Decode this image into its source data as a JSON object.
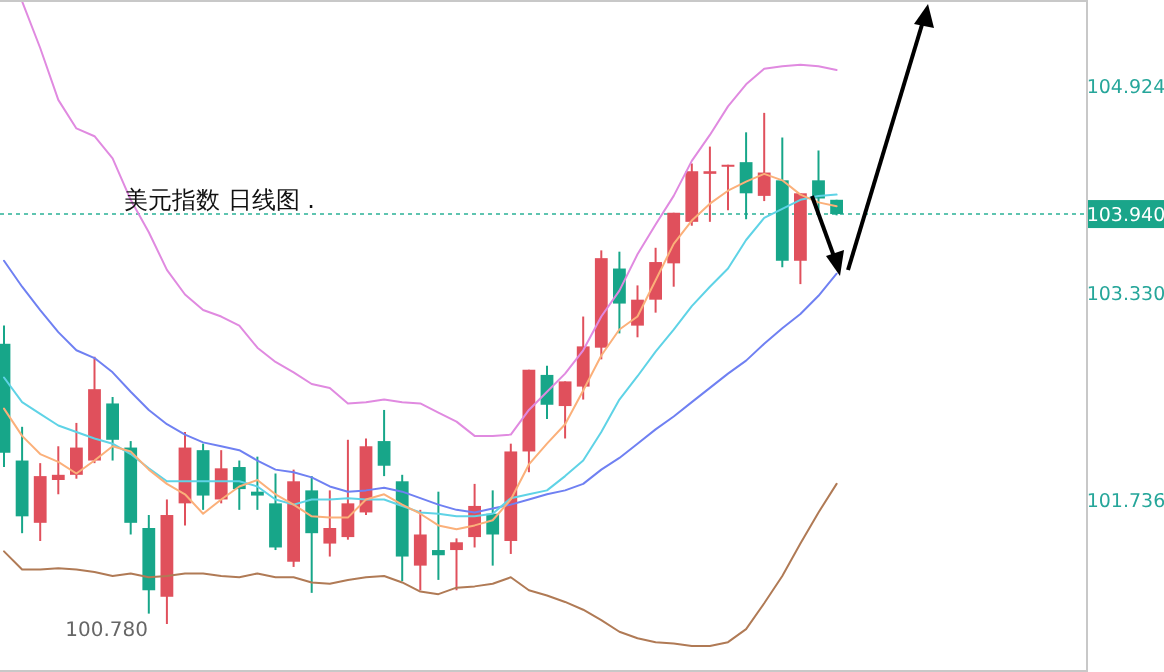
{
  "chart_data": {
    "type": "candlestick",
    "categories": [
      null,
      null,
      null,
      null,
      null,
      null,
      null,
      null,
      null,
      null,
      null,
      null,
      null,
      null,
      null,
      null,
      null,
      null,
      null,
      null,
      null,
      null,
      null,
      null,
      null,
      null,
      null,
      null,
      null,
      null,
      null,
      null,
      null,
      null,
      null,
      null,
      null,
      null,
      null,
      null,
      null,
      null,
      null,
      null,
      null,
      null,
      null
    ],
    "ohlc": [
      [
        102.94,
        103.08,
        101.99,
        102.1
      ],
      [
        102.04,
        102.3,
        101.48,
        101.61
      ],
      [
        101.56,
        102.02,
        101.42,
        101.92
      ],
      [
        101.89,
        102.15,
        101.78,
        101.93
      ],
      [
        101.93,
        102.33,
        101.9,
        102.14
      ],
      [
        102.04,
        102.84,
        102.02,
        102.59
      ],
      [
        102.48,
        102.53,
        102.04,
        102.2
      ],
      [
        102.14,
        102.19,
        101.47,
        101.56
      ],
      [
        101.52,
        101.62,
        100.86,
        101.04
      ],
      [
        100.99,
        101.74,
        100.78,
        101.62
      ],
      [
        101.71,
        102.26,
        101.54,
        102.14
      ],
      [
        102.12,
        102.17,
        101.66,
        101.77
      ],
      [
        101.74,
        102.12,
        101.71,
        101.98
      ],
      [
        101.99,
        102.04,
        101.66,
        101.82
      ],
      [
        101.8,
        102.07,
        101.66,
        101.77
      ],
      [
        101.71,
        101.94,
        101.35,
        101.37
      ],
      [
        101.26,
        101.97,
        101.22,
        101.88
      ],
      [
        101.81,
        101.92,
        101.02,
        101.48
      ],
      [
        101.4,
        101.81,
        101.3,
        101.52
      ],
      [
        101.45,
        102.2,
        101.43,
        101.71
      ],
      [
        101.64,
        102.21,
        101.62,
        102.15
      ],
      [
        102.19,
        102.43,
        101.92,
        102.0
      ],
      [
        101.88,
        101.93,
        101.11,
        101.3
      ],
      [
        101.23,
        101.66,
        101.04,
        101.47
      ],
      [
        101.35,
        101.8,
        101.12,
        101.31
      ],
      [
        101.35,
        101.44,
        101.04,
        101.41
      ],
      [
        101.45,
        101.86,
        101.37,
        101.69
      ],
      [
        101.63,
        101.81,
        101.23,
        101.47
      ],
      [
        101.42,
        102.17,
        101.32,
        102.11
      ],
      [
        102.11,
        102.74,
        101.95,
        102.74
      ],
      [
        102.7,
        102.77,
        102.36,
        102.47
      ],
      [
        102.46,
        102.65,
        102.21,
        102.65
      ],
      [
        102.61,
        103.15,
        102.51,
        102.92
      ],
      [
        102.91,
        103.66,
        102.82,
        103.6
      ],
      [
        103.52,
        103.65,
        103.02,
        103.25
      ],
      [
        103.08,
        103.39,
        102.99,
        103.28
      ],
      [
        103.28,
        103.68,
        103.18,
        103.57
      ],
      [
        103.56,
        103.95,
        103.38,
        103.95
      ],
      [
        103.88,
        104.33,
        103.85,
        104.27
      ],
      [
        104.25,
        104.46,
        103.88,
        104.27
      ],
      [
        104.31,
        104.32,
        103.97,
        104.32
      ],
      [
        104.34,
        104.57,
        103.9,
        104.1
      ],
      [
        104.08,
        104.72,
        104.04,
        104.26
      ],
      [
        104.2,
        104.53,
        103.53,
        103.58
      ],
      [
        103.58,
        104.1,
        103.4,
        104.1
      ],
      [
        104.2,
        104.43,
        103.95,
        104.06
      ],
      [
        104.05,
        104.05,
        103.93,
        103.94
      ]
    ],
    "colors": [
      "#17a689",
      "#17a689",
      "#e0505c",
      "#e0505c",
      "#e0505c",
      "#e0505c",
      "#17a689",
      "#17a689",
      "#17a689",
      "#e0505c",
      "#e0505c",
      "#17a689",
      "#e0505c",
      "#17a689",
      "#17a689",
      "#17a689",
      "#e0505c",
      "#17a689",
      "#e0505c",
      "#e0505c",
      "#e0505c",
      "#17a689",
      "#17a689",
      "#e0505c",
      "#17a689",
      "#e0505c",
      "#e0505c",
      "#17a689",
      "#e0505c",
      "#e0505c",
      "#17a689",
      "#e0505c",
      "#e0505c",
      "#e0505c",
      "#17a689",
      "#e0505c",
      "#e0505c",
      "#e0505c",
      "#e0505c",
      "#e0505c",
      "#e0505c",
      "#17a689",
      "#e0505c",
      "#17a689",
      "#e0505c",
      "#17a689",
      "#17a689"
    ],
    "series": [
      {
        "type": "line",
        "color": "#e08ae0",
        "values": [
          null,
          105.58,
          105.22,
          104.82,
          104.6,
          104.54,
          104.37,
          104.05,
          103.8,
          103.51,
          103.32,
          103.2,
          103.15,
          103.08,
          102.91,
          102.8,
          102.72,
          102.63,
          102.6,
          102.48,
          102.49,
          102.51,
          102.49,
          102.48,
          102.41,
          102.34,
          102.23,
          102.23,
          102.24,
          102.43,
          102.57,
          102.71,
          102.89,
          103.15,
          103.35,
          103.63,
          103.86,
          104.08,
          104.35,
          104.55,
          104.77,
          104.94,
          105.06,
          105.08,
          105.09,
          105.08,
          105.05
        ]
      },
      {
        "type": "line",
        "color": "#b07a55",
        "values": [
          101.34,
          101.2,
          101.2,
          101.21,
          101.2,
          101.18,
          101.15,
          101.17,
          101.14,
          101.15,
          101.17,
          101.17,
          101.15,
          101.14,
          101.17,
          101.14,
          101.14,
          101.1,
          101.09,
          101.12,
          101.14,
          101.15,
          101.1,
          101.03,
          101.01,
          101.06,
          101.07,
          101.09,
          101.14,
          101.04,
          101.0,
          100.95,
          100.89,
          100.81,
          100.72,
          100.67,
          100.64,
          100.63,
          100.61,
          100.61,
          100.64,
          100.74,
          100.94,
          101.15,
          101.4,
          101.64,
          101.86
        ]
      },
      {
        "type": "line",
        "color": "#6f80f2",
        "values": [
          103.58,
          103.38,
          103.2,
          103.03,
          102.89,
          102.83,
          102.72,
          102.57,
          102.43,
          102.32,
          102.24,
          102.18,
          102.15,
          102.12,
          102.04,
          101.97,
          101.95,
          101.91,
          101.84,
          101.8,
          101.81,
          101.83,
          101.8,
          101.75,
          101.7,
          101.66,
          101.64,
          101.67,
          101.7,
          101.74,
          101.78,
          101.81,
          101.86,
          101.97,
          102.06,
          102.17,
          102.28,
          102.38,
          102.49,
          102.6,
          102.71,
          102.81,
          102.94,
          103.06,
          103.17,
          103.31,
          103.48
        ]
      },
      {
        "type": "line",
        "color": "#5fd3e6",
        "values": [
          102.68,
          102.49,
          102.4,
          102.31,
          102.26,
          102.21,
          102.17,
          102.09,
          101.98,
          101.88,
          101.88,
          101.88,
          101.88,
          101.88,
          101.84,
          101.74,
          101.7,
          101.74,
          101.74,
          101.75,
          101.74,
          101.74,
          101.69,
          101.64,
          101.63,
          101.61,
          101.61,
          101.63,
          101.75,
          101.78,
          101.81,
          101.92,
          102.04,
          102.26,
          102.51,
          102.69,
          102.88,
          103.05,
          103.23,
          103.38,
          103.52,
          103.74,
          103.91,
          103.98,
          104.05,
          104.08,
          104.09
        ]
      },
      {
        "type": "line",
        "color": "#fbb07a",
        "values": [
          102.44,
          102.23,
          102.09,
          102.03,
          101.94,
          102.04,
          102.15,
          102.11,
          101.97,
          101.86,
          101.78,
          101.63,
          101.74,
          101.84,
          101.89,
          101.78,
          101.7,
          101.61,
          101.6,
          101.6,
          101.74,
          101.78,
          101.7,
          101.63,
          101.54,
          101.51,
          101.54,
          101.58,
          101.74,
          102.01,
          102.17,
          102.32,
          102.58,
          102.85,
          103.05,
          103.15,
          103.43,
          103.71,
          103.89,
          104.02,
          104.12,
          104.19,
          104.25,
          104.2,
          104.09,
          104.03,
          104.0
        ]
      }
    ],
    "ylim": [
      100.41,
      105.59
    ],
    "yticks": [
      {
        "value": 101.736,
        "label": "101.736"
      },
      {
        "value": 103.33,
        "label": "103.330"
      },
      {
        "value": 103.94,
        "label": "103.940"
      },
      {
        "value": 104.924,
        "label": "104.924"
      }
    ],
    "tick_labels": "y",
    "ref_lines": [
      {
        "axis": "y",
        "value": 103.94,
        "color": "#5ec4b0",
        "line_style": "dotted"
      }
    ],
    "annotations": [
      "美元指数 日线图 .",
      "100.780"
    ]
  }
}
